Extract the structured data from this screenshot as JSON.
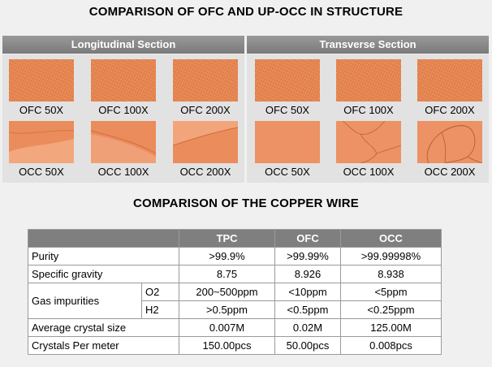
{
  "title_structure": "COMPARISON OF OFC AND UP-OCC IN STRUCTURE",
  "longitudinal": {
    "header": "Longitudinal Section",
    "captions": [
      "OFC 50X",
      "OFC 100X",
      "OFC 200X",
      "OCC 50X",
      "OCC 100X",
      "OCC 200X"
    ]
  },
  "transverse": {
    "header": "Transverse Section",
    "captions": [
      "OFC 50X",
      "OFC 100X",
      "OFC 200X",
      "OCC 50X",
      "OCC 100X",
      "OCC 200X"
    ]
  },
  "title_wire": "COMPARISON OF THE COPPER WIRE",
  "table": {
    "columns": [
      "",
      "TPC",
      "OFC",
      "OCC"
    ],
    "purity": {
      "label": "Purity",
      "values": [
        ">99.9%",
        ">99.99%",
        ">99.99998%"
      ]
    },
    "gravity": {
      "label": "Specific gravity",
      "values": [
        "8.75",
        "8.926",
        "8.938"
      ]
    },
    "gas": {
      "label": "Gas impurities",
      "o2": {
        "label": "O2",
        "values": [
          "200~500ppm",
          "<10ppm",
          "<5ppm"
        ]
      },
      "h2": {
        "label": "H2",
        "values": [
          ">0.5ppm",
          "<0.5ppm",
          "<0.25ppm"
        ]
      }
    },
    "crystal_size": {
      "label": "Average crystal size",
      "values": [
        "0.007M",
        "0.02M",
        "125.00M"
      ]
    },
    "crystals_per_meter": {
      "label": "Crystals Per meter",
      "values": [
        "150.00pcs",
        "50.00pcs",
        "0.008pcs"
      ]
    }
  }
}
